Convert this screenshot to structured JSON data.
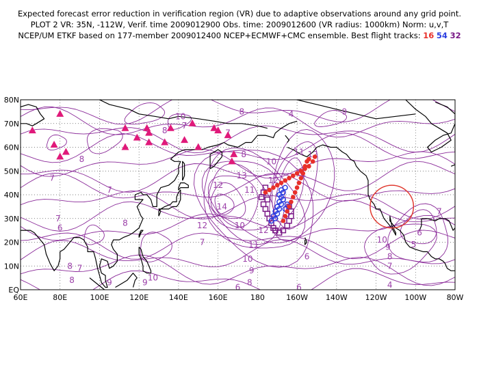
{
  "title": {
    "line1": "Expected forecast error reduction in verification region (VR) due to adaptive observations around any grid point.",
    "line2": "PLOT 2 VR: 35N, -112W, Verif. time 2009012900 Obs. time: 2009012600 (VR radius: 1000km) Norm: u,v,T",
    "line3_prefix": "NCEP/UM ETKF based on 177-member 2009012400 NCEP+ECMWF+CMC ensemble. Best flight tracks:",
    "track_red": "16",
    "track_blue": "54",
    "track_purple": "32"
  },
  "map": {
    "lon_range": [
      60,
      280
    ],
    "lat_range": [
      0,
      80
    ],
    "y_ticks": [
      "80N",
      "70N",
      "60N",
      "50N",
      "40N",
      "30N",
      "20N",
      "10N",
      "EQ"
    ],
    "x_ticks": [
      "60E",
      "80E",
      "100E",
      "120E",
      "140E",
      "160E",
      "180",
      "160W",
      "140W",
      "120W",
      "100W",
      "80W"
    ],
    "colors": {
      "contour": "#8a2a99",
      "contour_label": "#9b3fa8",
      "station": "#e0197a",
      "track_red": "#e8302a",
      "track_blue": "#2a3ee0",
      "track_purple": "#7a1a86",
      "vr_circle": "#e03a30",
      "grid": "#555555",
      "coast": "#000000"
    },
    "verification_region": {
      "lat": 35,
      "lon": -112,
      "radius_km": 1000
    },
    "contour_labels": [
      {
        "t": "10",
        "lon": 141,
        "lat": 73
      },
      {
        "t": "8",
        "lon": 133,
        "lat": 67
      },
      {
        "t": "7",
        "lon": 143,
        "lat": 69
      },
      {
        "t": "7",
        "lon": 165,
        "lat": 66
      },
      {
        "t": "8",
        "lon": 172,
        "lat": 75
      },
      {
        "t": "4",
        "lon": 197,
        "lat": 74
      },
      {
        "t": "9",
        "lon": 224,
        "lat": 75
      },
      {
        "t": "8",
        "lon": 173,
        "lat": 57
      },
      {
        "t": "10",
        "lon": 187,
        "lat": 54
      },
      {
        "t": "11",
        "lon": 201,
        "lat": 58
      },
      {
        "t": "12",
        "lon": 208,
        "lat": 57
      },
      {
        "t": "13",
        "lon": 172,
        "lat": 48
      },
      {
        "t": "12",
        "lon": 160,
        "lat": 44
      },
      {
        "t": "14",
        "lon": 162,
        "lat": 35
      },
      {
        "t": "12",
        "lon": 152,
        "lat": 27
      },
      {
        "t": "10",
        "lon": 171,
        "lat": 27
      },
      {
        "t": "11",
        "lon": 176,
        "lat": 42
      },
      {
        "t": "11",
        "lon": 178,
        "lat": 19
      },
      {
        "t": "12",
        "lon": 183,
        "lat": 25
      },
      {
        "t": "12",
        "lon": 188,
        "lat": 46
      },
      {
        "t": "11",
        "lon": 202,
        "lat": 49
      },
      {
        "t": "10",
        "lon": 175,
        "lat": 13
      },
      {
        "t": "9",
        "lon": 177,
        "lat": 8
      },
      {
        "t": "8",
        "lon": 176,
        "lat": 3
      },
      {
        "t": "7",
        "lon": 152,
        "lat": 20
      },
      {
        "t": "8",
        "lon": 113,
        "lat": 28
      },
      {
        "t": "7",
        "lon": 105,
        "lat": 42
      },
      {
        "t": "8",
        "lon": 91,
        "lat": 55
      },
      {
        "t": "7",
        "lon": 76,
        "lat": 47
      },
      {
        "t": "7",
        "lon": 79,
        "lat": 30
      },
      {
        "t": "6",
        "lon": 80,
        "lat": 26
      },
      {
        "t": "7",
        "lon": 90,
        "lat": 9
      },
      {
        "t": "8",
        "lon": 85,
        "lat": 10
      },
      {
        "t": "8",
        "lon": 86,
        "lat": 4
      },
      {
        "t": "9",
        "lon": 105,
        "lat": 3
      },
      {
        "t": "10",
        "lon": 127,
        "lat": 5
      },
      {
        "t": "9",
        "lon": 123,
        "lat": 3
      },
      {
        "t": "6",
        "lon": 170,
        "lat": 1
      },
      {
        "t": "6",
        "lon": 201,
        "lat": 1
      },
      {
        "t": "6",
        "lon": 205,
        "lat": 14
      },
      {
        "t": "4",
        "lon": 247,
        "lat": 2
      },
      {
        "t": "10",
        "lon": 243,
        "lat": 21
      },
      {
        "t": "9",
        "lon": 246,
        "lat": 18
      },
      {
        "t": "8",
        "lon": 247,
        "lat": 14
      },
      {
        "t": "7",
        "lon": 247,
        "lat": 10
      },
      {
        "t": "6",
        "lon": 262,
        "lat": 24
      },
      {
        "t": "5",
        "lon": 259,
        "lat": 19
      },
      {
        "t": "7",
        "lon": 272,
        "lat": 33
      }
    ],
    "stations": [
      [
        66,
        67
      ],
      [
        80,
        74
      ],
      [
        77,
        61
      ],
      [
        80,
        56
      ],
      [
        83,
        58
      ],
      [
        113,
        68
      ],
      [
        113,
        60
      ],
      [
        119,
        64
      ],
      [
        125,
        62
      ],
      [
        124,
        68
      ],
      [
        125,
        66
      ],
      [
        133,
        62
      ],
      [
        136,
        68
      ],
      [
        143,
        63
      ],
      [
        147,
        70
      ],
      [
        150,
        60
      ],
      [
        158,
        68
      ],
      [
        165,
        65
      ],
      [
        168,
        57
      ],
      [
        167,
        54
      ],
      [
        160,
        67
      ]
    ],
    "red_track": [
      [
        209,
        56
      ],
      [
        208,
        54
      ],
      [
        206,
        52
      ],
      [
        204,
        51
      ],
      [
        202,
        50
      ],
      [
        200,
        49
      ],
      [
        198,
        48
      ],
      [
        196,
        47
      ],
      [
        194,
        46
      ],
      [
        192,
        45
      ],
      [
        190,
        44
      ],
      [
        188,
        43
      ],
      [
        186,
        42
      ],
      [
        184,
        41
      ],
      [
        203,
        49
      ],
      [
        202,
        47
      ],
      [
        201,
        45
      ],
      [
        200,
        43
      ],
      [
        199,
        41
      ],
      [
        198,
        39
      ],
      [
        197,
        37
      ],
      [
        196,
        35
      ],
      [
        195,
        33
      ],
      [
        194,
        31
      ],
      [
        193,
        29
      ],
      [
        204,
        52
      ],
      [
        205,
        54
      ],
      [
        206,
        55
      ]
    ],
    "blue_track": [
      [
        194,
        43
      ],
      [
        193,
        41
      ],
      [
        192,
        39
      ],
      [
        191,
        37
      ],
      [
        190,
        35
      ],
      [
        189,
        33
      ],
      [
        188,
        31
      ],
      [
        187,
        29
      ],
      [
        193,
        38
      ],
      [
        192,
        36
      ],
      [
        191,
        34
      ],
      [
        190,
        32
      ],
      [
        189,
        30
      ],
      [
        192,
        42
      ],
      [
        191,
        40
      ],
      [
        195,
        36
      ],
      [
        194,
        34
      ]
    ],
    "purple_track": [
      [
        183,
        36
      ],
      [
        184,
        34
      ],
      [
        185,
        32
      ],
      [
        186,
        30
      ],
      [
        187,
        28
      ],
      [
        188,
        26
      ],
      [
        189,
        25
      ],
      [
        191,
        24
      ],
      [
        193,
        25
      ],
      [
        195,
        27
      ],
      [
        196,
        29
      ],
      [
        197,
        31
      ],
      [
        197,
        33
      ],
      [
        196,
        35
      ],
      [
        182,
        39
      ],
      [
        183,
        41
      ],
      [
        184,
        43
      ],
      [
        185,
        38
      ]
    ]
  }
}
